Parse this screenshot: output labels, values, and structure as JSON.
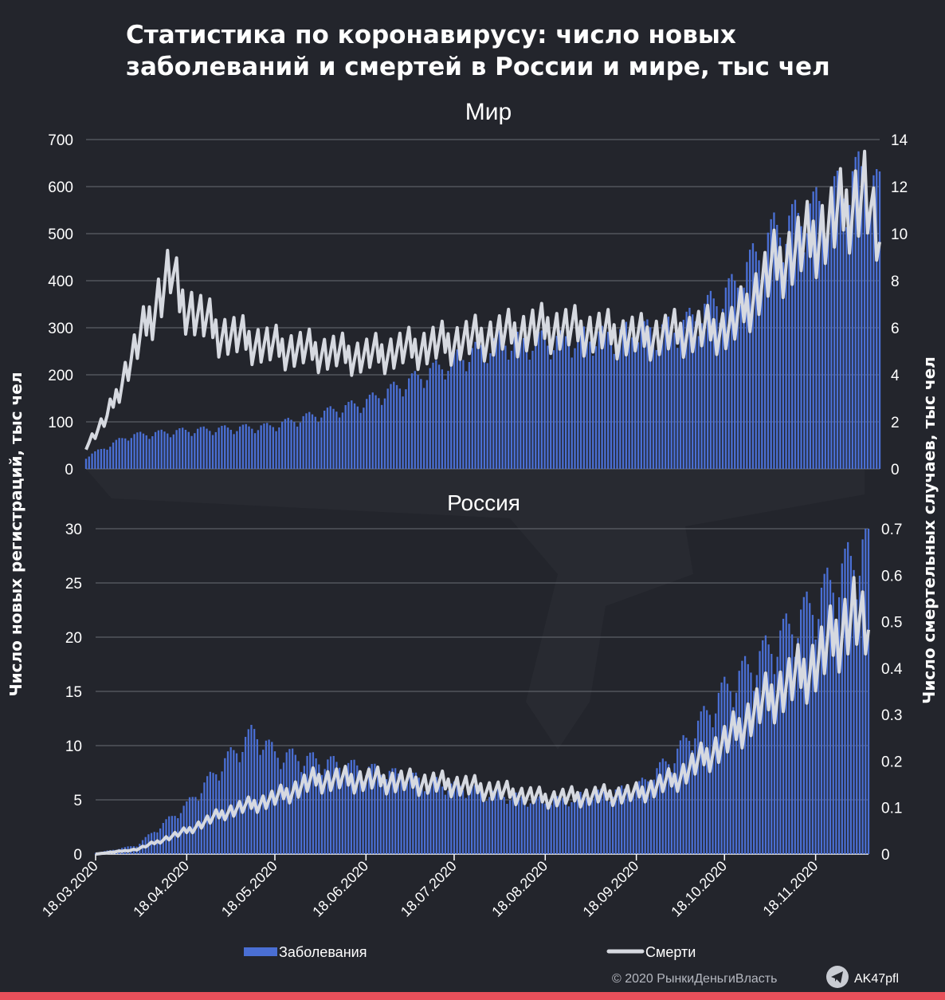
{
  "title": "Статистика по коронавирусу: число новых заболеваний и смертей в России и мире, тыс чел",
  "y_left_label": "Число новых регистраций, тыс чел",
  "y_right_label": "Число смертельных случаев, тыс чел",
  "legend": {
    "cases": "Заболевания",
    "deaths": "Смерти"
  },
  "copyright": "© 2020  РынкиДеньгиВласть",
  "telegram": "AK47pfl",
  "colors": {
    "background": "#23252c",
    "cases": "#4a6fd4",
    "deaths": "#d6d9e0",
    "accent_bar": "#e8505b"
  },
  "chart_data": [
    {
      "type": "bar+line",
      "title": "Мир",
      "x_start": "18.03.2020",
      "x_end": "06.12.2020",
      "x_ticks": [
        "18.03.2020",
        "18.04.2020",
        "18.05.2020",
        "18.06.2020",
        "18.07.2020",
        "18.08.2020",
        "18.09.2020",
        "18.10.2020",
        "18.11.2020"
      ],
      "y_left_ticks": [
        "0",
        "100",
        "200",
        "300",
        "400",
        "500",
        "600",
        "700"
      ],
      "y_right_ticks": [
        "0",
        "2",
        "4",
        "6",
        "8",
        "10",
        "12",
        "14"
      ],
      "y_left_lim": [
        0,
        700
      ],
      "y_right_lim": [
        0,
        14
      ],
      "grid": true,
      "series": [
        {
          "name": "Заболевания",
          "axis": "left",
          "kind": "bar",
          "anchors": [
            [
              "18.03.2020",
              25
            ],
            [
              "01.04.2020",
              70
            ],
            [
              "18.04.2020",
              80
            ],
            [
              "18.05.2020",
              90
            ],
            [
              "18.06.2020",
              140
            ],
            [
              "18.07.2020",
              230
            ],
            [
              "01.08.2020",
              270
            ],
            [
              "18.08.2020",
              270
            ],
            [
              "18.09.2020",
              290
            ],
            [
              "01.10.2020",
              300
            ],
            [
              "18.10.2020",
              380
            ],
            [
              "01.11.2020",
              500
            ],
            [
              "18.11.2020",
              560
            ],
            [
              "01.12.2020",
              630
            ],
            [
              "06.12.2020",
              580
            ]
          ]
        },
        {
          "name": "Смерти",
          "axis": "right",
          "kind": "line",
          "anchors": [
            [
              "18.03.2020",
              1.0
            ],
            [
              "25.03.2020",
              2.2
            ],
            [
              "01.04.2020",
              4.4
            ],
            [
              "10.04.2020",
              7.0
            ],
            [
              "15.04.2020",
              8.4
            ],
            [
              "18.04.2020",
              7.2
            ],
            [
              "01.05.2020",
              5.8
            ],
            [
              "18.05.2020",
              5.2
            ],
            [
              "18.06.2020",
              4.8
            ],
            [
              "18.07.2020",
              5.4
            ],
            [
              "18.08.2020",
              6.0
            ],
            [
              "18.09.2020",
              5.6
            ],
            [
              "18.10.2020",
              6.0
            ],
            [
              "01.11.2020",
              8.6
            ],
            [
              "18.11.2020",
              10.2
            ],
            [
              "01.12.2020",
              11.8
            ],
            [
              "06.12.2020",
              9.0
            ]
          ]
        }
      ]
    },
    {
      "type": "bar+line",
      "title": "Россия",
      "x_start": "18.03.2020",
      "x_end": "06.12.2020",
      "x_ticks": [
        "18.03.2020",
        "18.04.2020",
        "18.05.2020",
        "18.06.2020",
        "18.07.2020",
        "18.08.2020",
        "18.09.2020",
        "18.10.2020",
        "18.11.2020"
      ],
      "y_left_ticks": [
        "0",
        "5",
        "10",
        "15",
        "20",
        "25",
        "30"
      ],
      "y_right_ticks": [
        "0",
        "0.1",
        "0.2",
        "0.3",
        "0.4",
        "0.5",
        "0.6",
        "0.7"
      ],
      "y_left_lim": [
        0,
        30
      ],
      "y_right_lim": [
        0,
        0.7
      ],
      "grid": true,
      "series": [
        {
          "name": "Заболевания",
          "axis": "left",
          "kind": "bar",
          "anchors": [
            [
              "18.03.2020",
              0.1
            ],
            [
              "01.04.2020",
              0.8
            ],
            [
              "18.04.2020",
              4.5
            ],
            [
              "01.05.2020",
              8.5
            ],
            [
              "11.05.2020",
              11.2
            ],
            [
              "18.05.2020",
              9.2
            ],
            [
              "18.06.2020",
              7.8
            ],
            [
              "18.07.2020",
              6.2
            ],
            [
              "18.08.2020",
              4.8
            ],
            [
              "18.09.2020",
              6.0
            ],
            [
              "01.10.2020",
              9.0
            ],
            [
              "18.10.2020",
              15.0
            ],
            [
              "01.11.2020",
              18.5
            ],
            [
              "18.11.2020",
              23.0
            ],
            [
              "01.12.2020",
              27.0
            ],
            [
              "06.12.2020",
              28.5
            ]
          ]
        },
        {
          "name": "Смерти",
          "axis": "right",
          "kind": "line",
          "anchors": [
            [
              "18.03.2020",
              0.0
            ],
            [
              "01.04.2020",
              0.01
            ],
            [
              "18.04.2020",
              0.05
            ],
            [
              "01.05.2020",
              0.09
            ],
            [
              "18.05.2020",
              0.12
            ],
            [
              "01.06.2020",
              0.16
            ],
            [
              "18.06.2020",
              0.16
            ],
            [
              "18.07.2020",
              0.15
            ],
            [
              "18.08.2020",
              0.12
            ],
            [
              "18.09.2020",
              0.13
            ],
            [
              "01.10.2020",
              0.16
            ],
            [
              "18.10.2020",
              0.24
            ],
            [
              "01.11.2020",
              0.33
            ],
            [
              "18.11.2020",
              0.41
            ],
            [
              "01.12.2020",
              0.52
            ],
            [
              "06.12.2020",
              0.45
            ]
          ]
        }
      ]
    }
  ]
}
